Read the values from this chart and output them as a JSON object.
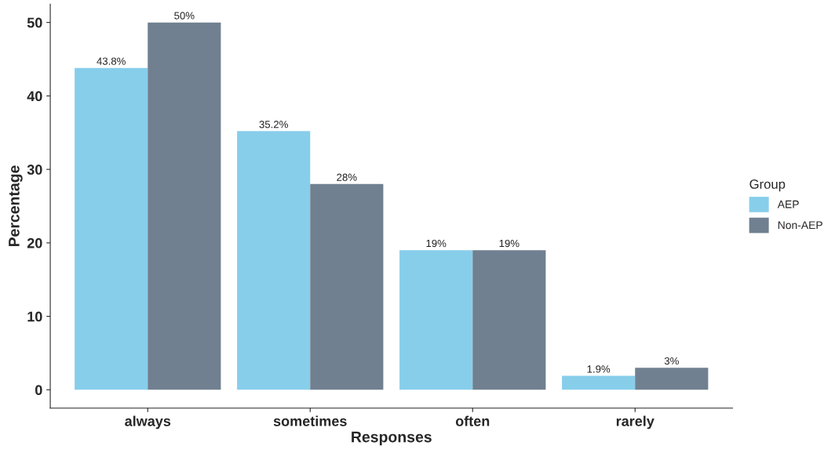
{
  "chart_data": {
    "type": "bar",
    "xlabel": "Responses",
    "ylabel": "Percentage",
    "legend_title": "Group",
    "categories": [
      "always",
      "sometimes",
      "often",
      "rarely"
    ],
    "series": [
      {
        "name": "AEP",
        "color": "#87ceeb",
        "values": [
          43.8,
          35.2,
          19,
          1.9
        ],
        "value_labels": [
          "43.8%",
          "35.2%",
          "19%",
          "1.9%"
        ]
      },
      {
        "name": "Non-AEP",
        "color": "#708090",
        "values": [
          50,
          28,
          19,
          3
        ],
        "value_labels": [
          "50%",
          "28%",
          "19%",
          "3%"
        ]
      }
    ],
    "ylim": [
      -2.5,
      52.5
    ],
    "yticks": [
      0,
      10,
      20,
      30,
      40,
      50
    ],
    "grid": false,
    "legend": "right"
  }
}
